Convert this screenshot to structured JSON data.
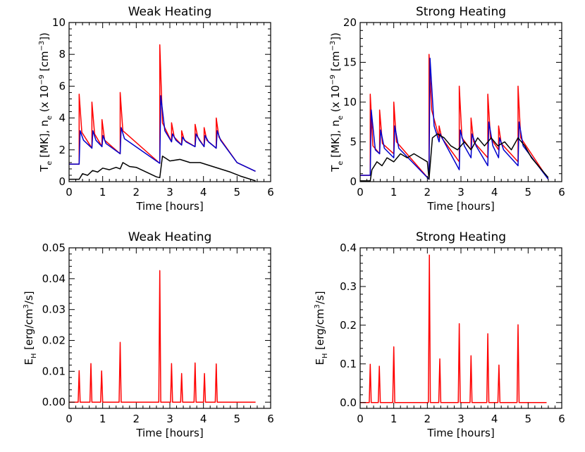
{
  "chart_data": [
    {
      "id": "p1",
      "type": "line",
      "title": "Weak Heating",
      "xlabel": "Time [hours]",
      "ylabel": "T_e [MK], n_e (x 10^-9 [cm^-3])",
      "xlim": [
        0,
        6
      ],
      "ylim": [
        0,
        10
      ],
      "xticks": [
        0,
        1,
        2,
        3,
        4,
        5,
        6
      ],
      "yticks": [
        0,
        2,
        4,
        6,
        8,
        10
      ],
      "ytick_labels": [
        "0",
        "2",
        "4",
        "6",
        "8",
        "10"
      ],
      "ylabel_parts": {
        "t": "T",
        "t_sub": "e",
        "mid": " [MK], n",
        "n_sub": "e",
        "paren": " (x 10",
        "exp1": "−9",
        "unit": " [cm",
        "exp2": "−3",
        "close": "])"
      },
      "series": [
        {
          "color": "#ff0000",
          "x": [
            0,
            0.3,
            0.3,
            0.38,
            0.68,
            0.68,
            0.76,
            0.98,
            0.98,
            1.06,
            1.52,
            1.52,
            1.6,
            2.7,
            2.7,
            2.78,
            3.05,
            3.05,
            3.13,
            3.35,
            3.35,
            3.43,
            3.75,
            3.75,
            3.83,
            4.02,
            4.02,
            4.1,
            4.38,
            4.38,
            4.46,
            5.0,
            5.55
          ],
          "y": [
            1.1,
            1.1,
            5.5,
            3.1,
            2.1,
            5.0,
            3.0,
            2.2,
            3.9,
            2.6,
            1.75,
            5.6,
            3.2,
            1.15,
            8.6,
            3.7,
            2.5,
            3.7,
            2.8,
            2.3,
            3.2,
            2.6,
            2.2,
            3.6,
            2.8,
            2.2,
            3.4,
            2.6,
            2.1,
            4.0,
            2.8,
            1.2,
            0.65
          ]
        },
        {
          "color": "#0000cc",
          "x": [
            0,
            0.3,
            0.33,
            0.43,
            0.68,
            0.71,
            0.8,
            0.98,
            1.01,
            1.1,
            1.52,
            1.55,
            1.65,
            2.7,
            2.73,
            2.85,
            3.05,
            3.08,
            3.18,
            3.35,
            3.38,
            3.48,
            3.75,
            3.78,
            3.88,
            4.02,
            4.05,
            4.15,
            4.38,
            4.41,
            4.51,
            5.0,
            5.55
          ],
          "y": [
            1.1,
            1.1,
            3.2,
            2.6,
            2.1,
            3.2,
            2.6,
            2.2,
            2.9,
            2.4,
            1.75,
            3.4,
            2.7,
            1.15,
            5.4,
            3.2,
            2.5,
            3.0,
            2.6,
            2.3,
            2.8,
            2.5,
            2.2,
            3.0,
            2.6,
            2.2,
            2.9,
            2.5,
            2.1,
            3.2,
            2.6,
            1.2,
            0.65
          ]
        },
        {
          "color": "#000000",
          "x": [
            0,
            0.3,
            0.4,
            0.55,
            0.7,
            0.85,
            1.0,
            1.2,
            1.4,
            1.52,
            1.6,
            1.8,
            2.0,
            2.3,
            2.6,
            2.7,
            2.78,
            3.0,
            3.3,
            3.6,
            3.9,
            4.2,
            4.5,
            4.8,
            5.1,
            5.55
          ],
          "y": [
            0.15,
            0.15,
            0.5,
            0.4,
            0.7,
            0.6,
            0.85,
            0.75,
            0.9,
            0.8,
            1.2,
            0.95,
            0.9,
            0.6,
            0.3,
            0.25,
            1.6,
            1.3,
            1.4,
            1.2,
            1.2,
            1.0,
            0.8,
            0.6,
            0.35,
            0.05
          ]
        }
      ]
    },
    {
      "id": "p2",
      "type": "line",
      "title": "Strong Heating",
      "xlabel": "Time [hours]",
      "ylabel": "T_e [MK], n_e (x 10^-9 [cm^-3])",
      "xlim": [
        0,
        6
      ],
      "ylim": [
        0,
        20
      ],
      "xticks": [
        0,
        1,
        2,
        3,
        4,
        5,
        6
      ],
      "yticks": [
        0,
        5,
        10,
        15,
        20
      ],
      "ytick_labels": [
        "0",
        "5",
        "10",
        "15",
        "20"
      ],
      "ylabel_parts": {
        "t": "T",
        "t_sub": "e",
        "mid": " [MK], n",
        "n_sub": "e",
        "paren": " (x 10",
        "exp1": "−9",
        "unit": " [cm",
        "exp2": "−3",
        "close": "])"
      },
      "series": [
        {
          "color": "#ff0000",
          "x": [
            0,
            0.3,
            0.3,
            0.38,
            0.58,
            0.58,
            0.66,
            1.0,
            1.0,
            1.08,
            2.05,
            2.05,
            2.13,
            2.35,
            2.35,
            2.43,
            2.95,
            2.95,
            3.03,
            3.3,
            3.3,
            3.38,
            3.8,
            3.8,
            3.88,
            4.12,
            4.12,
            4.2,
            4.7,
            4.7,
            4.78,
            5.6
          ],
          "y": [
            0.8,
            0.8,
            11,
            4.5,
            3.5,
            9,
            4.8,
            3.5,
            10,
            5.0,
            0.3,
            16,
            9,
            5.5,
            7,
            5.5,
            2.5,
            12,
            5.5,
            4.0,
            8,
            5.0,
            3.0,
            11,
            5.5,
            4.0,
            7,
            4.8,
            2.5,
            12,
            5.5,
            0.3
          ]
        },
        {
          "color": "#0000cc",
          "x": [
            0,
            0.3,
            0.33,
            0.45,
            0.58,
            0.61,
            0.72,
            1.0,
            1.03,
            1.15,
            2.05,
            2.08,
            2.2,
            2.35,
            2.38,
            2.5,
            2.95,
            2.98,
            3.1,
            3.3,
            3.33,
            3.45,
            3.8,
            3.83,
            3.95,
            4.12,
            4.15,
            4.27,
            4.7,
            4.73,
            4.85,
            5.6
          ],
          "y": [
            0.8,
            0.8,
            9,
            4.0,
            3.5,
            6.5,
            4.2,
            3.0,
            7,
            4.2,
            0.3,
            15.5,
            7,
            5.0,
            6.0,
            5.0,
            1.5,
            6.5,
            4.5,
            3.0,
            6,
            4.5,
            2.0,
            7.5,
            4.5,
            3.0,
            5.5,
            4.0,
            2.0,
            7.5,
            4.5,
            0.3
          ]
        },
        {
          "color": "#000000",
          "x": [
            0,
            0.3,
            0.35,
            0.5,
            0.65,
            0.8,
            1.0,
            1.2,
            1.4,
            1.6,
            1.8,
            2.0,
            2.05,
            2.15,
            2.3,
            2.5,
            2.7,
            2.9,
            3.1,
            3.3,
            3.5,
            3.7,
            3.9,
            4.1,
            4.3,
            4.5,
            4.7,
            4.9,
            5.1,
            5.3,
            5.6
          ],
          "y": [
            0.1,
            0.1,
            1.5,
            2.5,
            2.0,
            3.0,
            2.5,
            3.5,
            3.0,
            3.5,
            3.0,
            2.5,
            0.3,
            5.5,
            6.0,
            5.5,
            4.5,
            4.0,
            5.0,
            4.0,
            5.5,
            4.5,
            5.5,
            4.5,
            5.0,
            4.0,
            5.5,
            4.5,
            3.0,
            2.0,
            0.5
          ]
        }
      ]
    },
    {
      "id": "p3",
      "type": "line",
      "title": "Weak Heating",
      "xlabel": "Time [hours]",
      "ylabel": "E_H [erg/cm^3/s]",
      "xlim": [
        0,
        6
      ],
      "ylim": [
        -0.002,
        0.05
      ],
      "xticks": [
        0,
        1,
        2,
        3,
        4,
        5,
        6
      ],
      "yticks": [
        0,
        0.01,
        0.02,
        0.03,
        0.04,
        0.05
      ],
      "ytick_labels": [
        "0.00",
        "0.01",
        "0.02",
        "0.03",
        "0.04",
        "0.05"
      ],
      "ylabel_parts": {
        "t": "E",
        "t_sub": "H",
        "mid": " [erg/cm",
        "exp1": "3",
        "close": "/s]"
      },
      "spike_width": 0.03,
      "series": [
        {
          "color": "#ff0000",
          "spikes": [
            [
              0.3,
              0.0102
            ],
            [
              0.65,
              0.0125
            ],
            [
              0.97,
              0.0101
            ],
            [
              1.52,
              0.0194
            ],
            [
              2.7,
              0.0426
            ],
            [
              3.05,
              0.0125
            ],
            [
              3.35,
              0.0093
            ],
            [
              3.75,
              0.0127
            ],
            [
              4.03,
              0.0093
            ],
            [
              4.38,
              0.0124
            ]
          ]
        }
      ]
    },
    {
      "id": "p4",
      "type": "line",
      "title": "Strong Heating",
      "xlabel": "Time [hours]",
      "ylabel": "E_H [erg/cm^3/s]",
      "xlim": [
        0,
        6
      ],
      "ylim": [
        -0.015,
        0.4
      ],
      "xticks": [
        0,
        1,
        2,
        3,
        4,
        5,
        6
      ],
      "yticks": [
        0,
        0.1,
        0.2,
        0.3,
        0.4
      ],
      "ytick_labels": [
        "0.0",
        "0.1",
        "0.2",
        "0.3",
        "0.4"
      ],
      "ylabel_parts": {
        "t": "E",
        "t_sub": "H",
        "mid": " [erg/cm",
        "exp1": "3",
        "close": "/s]"
      },
      "spike_width": 0.03,
      "series": [
        {
          "color": "#ff0000",
          "spikes": [
            [
              0.3,
              0.099
            ],
            [
              0.57,
              0.094
            ],
            [
              1.0,
              0.144
            ],
            [
              2.06,
              0.381
            ],
            [
              2.37,
              0.113
            ],
            [
              2.95,
              0.204
            ],
            [
              3.3,
              0.121
            ],
            [
              3.8,
              0.178
            ],
            [
              4.13,
              0.097
            ],
            [
              4.7,
              0.201
            ]
          ]
        }
      ]
    }
  ]
}
